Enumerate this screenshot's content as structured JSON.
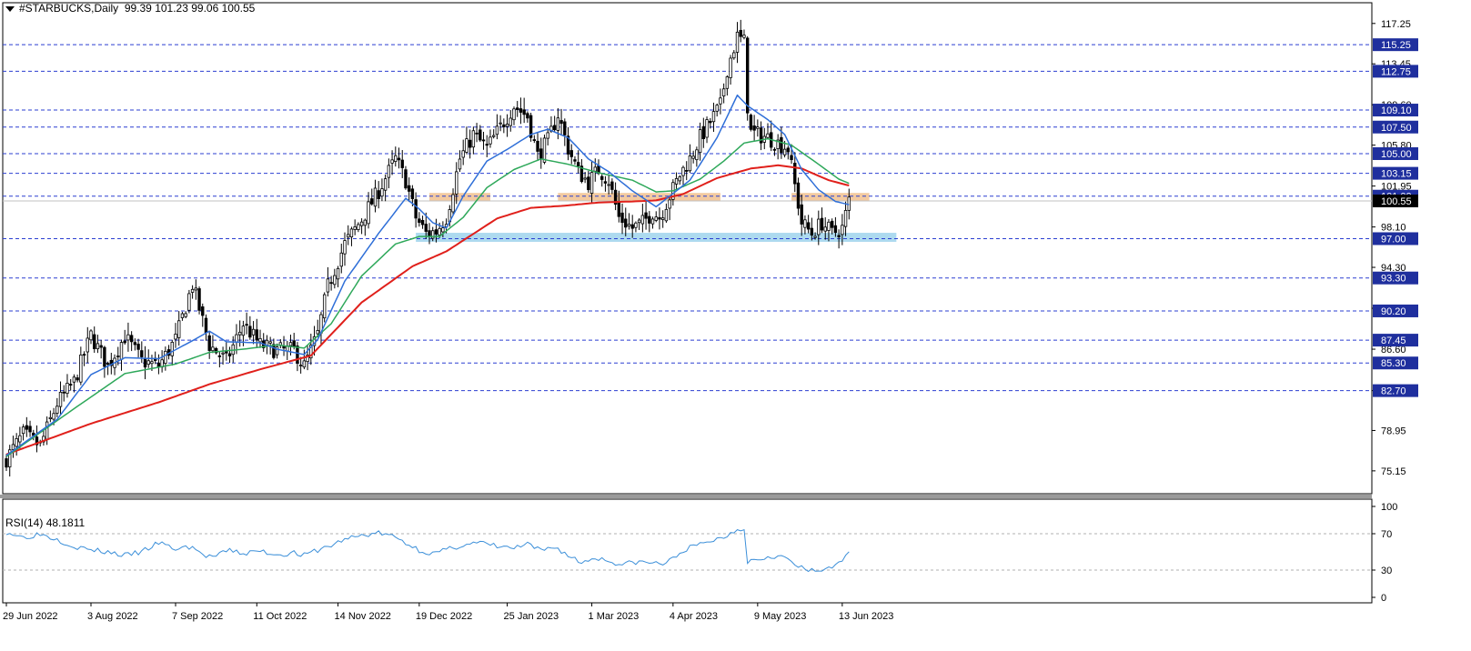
{
  "header": {
    "symbol": "#STARBUCKS",
    "timeframe": "Daily",
    "open": "99.39",
    "high": "101.23",
    "low": "99.06",
    "close": "100.55"
  },
  "rsi_panel": {
    "label": "RSI(14)",
    "value": "48.1811"
  },
  "colors": {
    "dashed_levels": "#2b3fd1",
    "level_box_fill": "#1f2f9e",
    "ma_fast": "#2f6fd8",
    "ma_medium": "#2ea85a",
    "ma_slow": "#e0201b",
    "resistance_zone": "#f2c79b",
    "support_zone": "#a9d8ee",
    "rsi_line": "#3b8fd9",
    "candle": "#000000"
  },
  "chart_data": [
    {
      "type": "candlestick",
      "symbol": "#STARBUCKS",
      "timeframe": "Daily",
      "ylim": [
        73.0,
        119.2
      ],
      "y_ticks": [
        "117.25",
        "113.45",
        "109.60",
        "105.80",
        "101.95",
        "98.10",
        "94.30",
        "90.45",
        "86.60",
        "82.70",
        "78.95",
        "75.15"
      ],
      "x_ticks": [
        "29 Jun 2022",
        "3 Aug 2022",
        "7 Sep 2022",
        "11 Oct 2022",
        "14 Nov 2022",
        "19 Dec 2022",
        "25 Jan 2023",
        "1 Mar 2023",
        "4 Apr 2023",
        "9 May 2023",
        "13 Jun 2023"
      ],
      "x_tick_bar_index": [
        0,
        25,
        50,
        74,
        98,
        122,
        148,
        173,
        197,
        222,
        247
      ],
      "current_price_label": "100.55",
      "horizontal_levels": [
        "115.25",
        "112.75",
        "109.10",
        "107.50",
        "105.00",
        "103.15",
        "101.00",
        "97.00",
        "93.30",
        "90.20",
        "87.45",
        "85.30",
        "82.70"
      ],
      "zones": [
        {
          "kind": "resistance",
          "from_bar": 125,
          "to_bar": 143,
          "low": 100.55,
          "high": 101.3
        },
        {
          "kind": "resistance",
          "from_bar": 163,
          "to_bar": 211,
          "low": 100.55,
          "high": 101.3
        },
        {
          "kind": "resistance",
          "from_bar": 232,
          "to_bar": 255,
          "low": 100.55,
          "high": 101.3
        },
        {
          "kind": "support",
          "from_bar": 121,
          "to_bar": 263,
          "low": 96.7,
          "high": 97.55
        }
      ],
      "price_anchors": [
        [
          0,
          76.3
        ],
        [
          5,
          78.6
        ],
        [
          10,
          77.5
        ],
        [
          15,
          81.5
        ],
        [
          20,
          83.5
        ],
        [
          25,
          87.9
        ],
        [
          30,
          85.0
        ],
        [
          35,
          87.8
        ],
        [
          40,
          85.5
        ],
        [
          45,
          85.0
        ],
        [
          50,
          87.5
        ],
        [
          55,
          92.7
        ],
        [
          60,
          87.0
        ],
        [
          65,
          85.5
        ],
        [
          70,
          89.0
        ],
        [
          75,
          87.0
        ],
        [
          80,
          86.5
        ],
        [
          85,
          86.5
        ],
        [
          88,
          85.0
        ],
        [
          92,
          88.0
        ],
        [
          95,
          92.5
        ],
        [
          100,
          96.5
        ],
        [
          105,
          98.8
        ],
        [
          110,
          101.5
        ],
        [
          115,
          104.5
        ],
        [
          118,
          102.5
        ],
        [
          121,
          99.0
        ],
        [
          124,
          97.5
        ],
        [
          127,
          97.7
        ],
        [
          130,
          99.0
        ],
        [
          134,
          104.5
        ],
        [
          138,
          106.8
        ],
        [
          142,
          105.5
        ],
        [
          146,
          107.5
        ],
        [
          150,
          109.5
        ],
        [
          154,
          108.5
        ],
        [
          157,
          104.8
        ],
        [
          160,
          106.2
        ],
        [
          163,
          108.7
        ],
        [
          166,
          105.5
        ],
        [
          169,
          103.3
        ],
        [
          172,
          102.3
        ],
        [
          175,
          103.5
        ],
        [
          178,
          102.5
        ],
        [
          181,
          99.0
        ],
        [
          185,
          98.0
        ],
        [
          188,
          98.5
        ],
        [
          191,
          99.5
        ],
        [
          193,
          99.0
        ],
        [
          196,
          101.0
        ],
        [
          199,
          103.0
        ],
        [
          202,
          104.5
        ],
        [
          205,
          106.5
        ],
        [
          208,
          108.0
        ],
        [
          211,
          109.5
        ],
        [
          213,
          113.0
        ],
        [
          216,
          116.0
        ],
        [
          218,
          115.5
        ],
        [
          219,
          109.5
        ],
        [
          220,
          107.0
        ],
        [
          222,
          106.8
        ],
        [
          225,
          106.5
        ],
        [
          228,
          106.0
        ],
        [
          231,
          105.5
        ],
        [
          233,
          102.0
        ],
        [
          235,
          98.5
        ],
        [
          238,
          97.5
        ],
        [
          241,
          98.5
        ],
        [
          244,
          97.5
        ],
        [
          247,
          98.0
        ],
        [
          249,
          100.55
        ]
      ],
      "ma_fast_anchors": [
        [
          0,
          76.6
        ],
        [
          15,
          80.0
        ],
        [
          25,
          84.2
        ],
        [
          35,
          85.8
        ],
        [
          45,
          85.7
        ],
        [
          55,
          87.4
        ],
        [
          60,
          88.3
        ],
        [
          65,
          87.3
        ],
        [
          75,
          87.2
        ],
        [
          80,
          86.6
        ],
        [
          88,
          86.1
        ],
        [
          92,
          87.5
        ],
        [
          100,
          93.0
        ],
        [
          110,
          97.5
        ],
        [
          118,
          100.8
        ],
        [
          122,
          99.8
        ],
        [
          126,
          98.5
        ],
        [
          130,
          98.0
        ],
        [
          135,
          101.0
        ],
        [
          142,
          104.3
        ],
        [
          148,
          105.4
        ],
        [
          155,
          106.8
        ],
        [
          160,
          107.3
        ],
        [
          166,
          106.5
        ],
        [
          172,
          104.5
        ],
        [
          178,
          103.3
        ],
        [
          185,
          101.5
        ],
        [
          192,
          100.0
        ],
        [
          196,
          101.0
        ],
        [
          202,
          102.5
        ],
        [
          210,
          106.5
        ],
        [
          216,
          110.5
        ],
        [
          219,
          109.5
        ],
        [
          225,
          108.2
        ],
        [
          230,
          106.8
        ],
        [
          235,
          103.5
        ],
        [
          240,
          101.6
        ],
        [
          245,
          100.5
        ],
        [
          249,
          100.2
        ]
      ],
      "ma_medium_anchors": [
        [
          0,
          76.5
        ],
        [
          20,
          81.0
        ],
        [
          35,
          84.3
        ],
        [
          50,
          85.2
        ],
        [
          60,
          86.3
        ],
        [
          70,
          86.6
        ],
        [
          80,
          87.0
        ],
        [
          88,
          86.7
        ],
        [
          96,
          89.0
        ],
        [
          105,
          93.5
        ],
        [
          115,
          96.5
        ],
        [
          122,
          97.2
        ],
        [
          128,
          97.2
        ],
        [
          135,
          99.0
        ],
        [
          142,
          101.8
        ],
        [
          150,
          103.5
        ],
        [
          158,
          104.5
        ],
        [
          166,
          104.0
        ],
        [
          175,
          103.2
        ],
        [
          185,
          102.5
        ],
        [
          192,
          101.4
        ],
        [
          197,
          101.5
        ],
        [
          205,
          102.6
        ],
        [
          212,
          104.3
        ],
        [
          218,
          106.0
        ],
        [
          225,
          106.4
        ],
        [
          232,
          105.8
        ],
        [
          240,
          104.0
        ],
        [
          246,
          102.6
        ],
        [
          249,
          102.2
        ]
      ],
      "ma_slow_anchors": [
        [
          0,
          76.7
        ],
        [
          25,
          79.6
        ],
        [
          45,
          81.6
        ],
        [
          60,
          83.3
        ],
        [
          75,
          84.7
        ],
        [
          90,
          86.0
        ],
        [
          105,
          91.0
        ],
        [
          120,
          94.4
        ],
        [
          130,
          95.8
        ],
        [
          145,
          98.9
        ],
        [
          155,
          99.9
        ],
        [
          165,
          100.1
        ],
        [
          175,
          100.4
        ],
        [
          185,
          100.5
        ],
        [
          192,
          100.6
        ],
        [
          200,
          101.2
        ],
        [
          210,
          102.7
        ],
        [
          220,
          103.6
        ],
        [
          228,
          103.9
        ],
        [
          235,
          103.6
        ],
        [
          243,
          102.5
        ],
        [
          249,
          102.0
        ]
      ]
    },
    {
      "type": "line",
      "title": "RSI(14) 48.1811",
      "ylim": [
        0,
        100
      ],
      "y_ticks": [
        "100",
        "70",
        "30",
        "0"
      ],
      "levels": [
        70,
        30
      ],
      "rsi_anchors": [
        [
          0,
          72
        ],
        [
          5,
          66
        ],
        [
          10,
          70
        ],
        [
          15,
          64
        ],
        [
          20,
          56
        ],
        [
          25,
          52
        ],
        [
          30,
          50
        ],
        [
          35,
          46
        ],
        [
          40,
          50
        ],
        [
          45,
          60
        ],
        [
          50,
          53
        ],
        [
          55,
          56
        ],
        [
          58,
          46
        ],
        [
          62,
          45
        ],
        [
          66,
          52
        ],
        [
          70,
          48
        ],
        [
          75,
          51
        ],
        [
          80,
          47
        ],
        [
          85,
          49
        ],
        [
          88,
          46
        ],
        [
          92,
          52
        ],
        [
          96,
          57
        ],
        [
          100,
          64
        ],
        [
          105,
          68
        ],
        [
          110,
          71
        ],
        [
          115,
          66
        ],
        [
          118,
          60
        ],
        [
          122,
          52
        ],
        [
          126,
          48
        ],
        [
          130,
          52
        ],
        [
          135,
          58
        ],
        [
          140,
          60
        ],
        [
          145,
          56
        ],
        [
          150,
          54
        ],
        [
          154,
          58
        ],
        [
          158,
          51
        ],
        [
          162,
          56
        ],
        [
          166,
          46
        ],
        [
          170,
          38
        ],
        [
          174,
          44
        ],
        [
          178,
          40
        ],
        [
          182,
          36
        ],
        [
          186,
          39
        ],
        [
          190,
          38
        ],
        [
          194,
          37
        ],
        [
          197,
          42
        ],
        [
          200,
          52
        ],
        [
          205,
          58
        ],
        [
          208,
          62
        ],
        [
          212,
          66
        ],
        [
          215,
          73
        ],
        [
          216,
          75
        ],
        [
          218,
          76
        ],
        [
          219,
          40
        ],
        [
          222,
          42
        ],
        [
          226,
          46
        ],
        [
          230,
          44
        ],
        [
          233,
          36
        ],
        [
          236,
          30
        ],
        [
          240,
          28
        ],
        [
          243,
          34
        ],
        [
          246,
          36
        ],
        [
          249,
          48
        ]
      ]
    }
  ]
}
